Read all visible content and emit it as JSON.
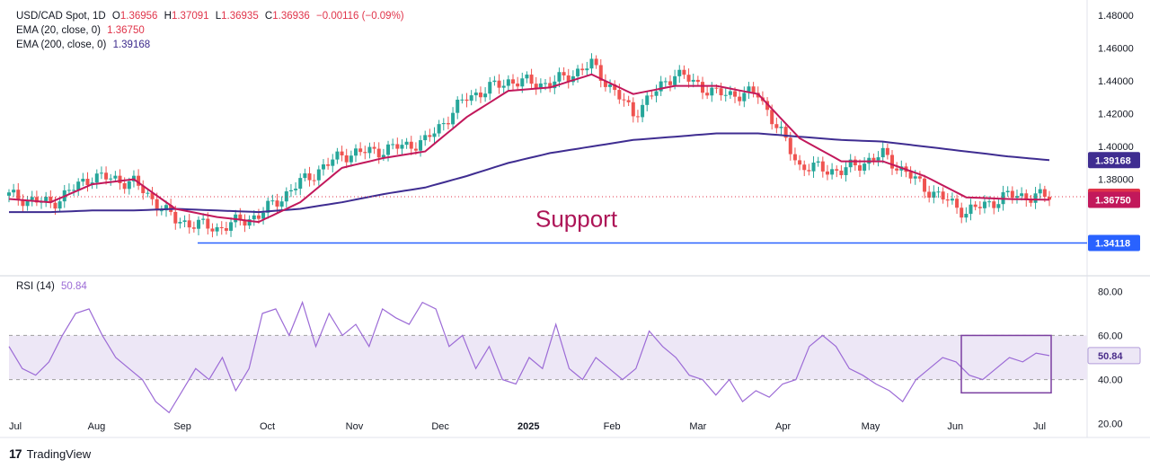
{
  "header": {
    "symbol_line": {
      "symbol": "USD/CAD Spot, 1D",
      "o_label": "O",
      "o": "1.36956",
      "h_label": "H",
      "h": "1.37091",
      "l_label": "L",
      "l": "1.36935",
      "c_label": "C",
      "c": "1.36936",
      "change": "−0.00116 (−0.09%)"
    },
    "ema20": {
      "label": "EMA (20, close, 0)",
      "value": "1.36750"
    },
    "ema200": {
      "label": "EMA (200, close, 0)",
      "value": "1.39168"
    },
    "rsi": {
      "label": "RSI (14)",
      "value": "50.84"
    }
  },
  "brand": {
    "logo": "17",
    "name": "TradingView"
  },
  "colors": {
    "up": "#26a69a",
    "down": "#ef5350",
    "ema20": "#c2185b",
    "ema200": "#3f2d91",
    "rsi": "#9c6bd6",
    "rsi_band": "#ede7f6",
    "support": "#2962ff",
    "box": "#7b3fa0"
  },
  "chart_data": [
    {
      "type": "line",
      "title": "",
      "x": [
        "Jul 1",
        "Jul 15",
        "Aug 1",
        "Aug 15",
        "Sep 1",
        "Sep 15",
        "Oct 1",
        "Oct 15",
        "Nov 1",
        "Nov 15",
        "Dec 1",
        "Dec 15",
        "Jan 1",
        "Jan 15",
        "Feb 1",
        "Feb 15",
        "Mar 1",
        "Mar 15",
        "Apr 1",
        "Apr 15",
        "May 1",
        "May 15",
        "Jun 1",
        "Jun 15",
        "Jul 1",
        "Jul 14"
      ],
      "series": [
        {
          "name": "price",
          "values": [
            1.37,
            1.365,
            1.382,
            1.378,
            1.355,
            1.35,
            1.358,
            1.378,
            1.395,
            1.398,
            1.403,
            1.43,
            1.44,
            1.438,
            1.45,
            1.42,
            1.445,
            1.432,
            1.432,
            1.388,
            1.385,
            1.395,
            1.375,
            1.36,
            1.37,
            1.3694
          ]
        },
        {
          "name": "EMA (20, close, 0)",
          "values": [
            1.368,
            1.366,
            1.377,
            1.38,
            1.362,
            1.357,
            1.354,
            1.366,
            1.387,
            1.393,
            1.397,
            1.418,
            1.434,
            1.436,
            1.444,
            1.432,
            1.437,
            1.437,
            1.432,
            1.405,
            1.391,
            1.391,
            1.382,
            1.369,
            1.368,
            1.3675
          ]
        },
        {
          "name": "EMA (200, close, 0)",
          "values": [
            1.36,
            1.36,
            1.361,
            1.361,
            1.362,
            1.361,
            1.36,
            1.362,
            1.366,
            1.371,
            1.375,
            1.382,
            1.39,
            1.396,
            1.4,
            1.404,
            1.406,
            1.408,
            1.408,
            1.406,
            1.404,
            1.403,
            1.4,
            1.397,
            1.394,
            1.39168
          ]
        }
      ],
      "ylim": [
        1.325,
        1.485
      ],
      "y_ticks": [
        "1.48000",
        "1.46000",
        "1.44000",
        "1.42000",
        "1.40000",
        "1.38000"
      ],
      "x_tick_labels": [
        "Jul",
        "Aug",
        "Sep",
        "Oct",
        "Nov",
        "Dec",
        "2025",
        "Feb",
        "Mar",
        "Apr",
        "May",
        "Jun",
        "Jul"
      ],
      "price_tags": [
        {
          "label": "1.39168",
          "value": 1.39168,
          "color": "#3f2d91"
        },
        {
          "label": "1.36936",
          "value": 1.36936,
          "color": "#e0344a"
        },
        {
          "label": "1.36750",
          "value": 1.3675,
          "color": "#c2185b"
        },
        {
          "label": "1.34118",
          "value": 1.34118,
          "color": "#2962ff"
        }
      ],
      "support": {
        "label": "Support",
        "value": 1.34118,
        "from": "Sep 8",
        "to": "Jul 14"
      },
      "last_price_dotted": 1.36936,
      "grid": false
    },
    {
      "type": "line",
      "title": "RSI (14)",
      "series": [
        {
          "name": "RSI (14)",
          "values": [
            55,
            45,
            42,
            48,
            60,
            70,
            72,
            60,
            50,
            45,
            40,
            30,
            25,
            35,
            45,
            40,
            50,
            35,
            45,
            70,
            72,
            60,
            75,
            55,
            70,
            60,
            65,
            55,
            72,
            68,
            65,
            75,
            72,
            55,
            60,
            45,
            55,
            40,
            38,
            50,
            45,
            65,
            45,
            40,
            50,
            45,
            40,
            45,
            62,
            55,
            50,
            42,
            40,
            33,
            40,
            30,
            35,
            32,
            38,
            40,
            55,
            60,
            55,
            45,
            42,
            38,
            35,
            30,
            40,
            45,
            50,
            48,
            42,
            40,
            45,
            50,
            48,
            52,
            50.84
          ]
        }
      ],
      "ylim": [
        15,
        85
      ],
      "y_ticks": [
        "80.00",
        "60.00",
        "40.00",
        "20.00"
      ],
      "band": [
        40,
        60
      ],
      "value_tag": "50.84",
      "grid": false
    }
  ]
}
